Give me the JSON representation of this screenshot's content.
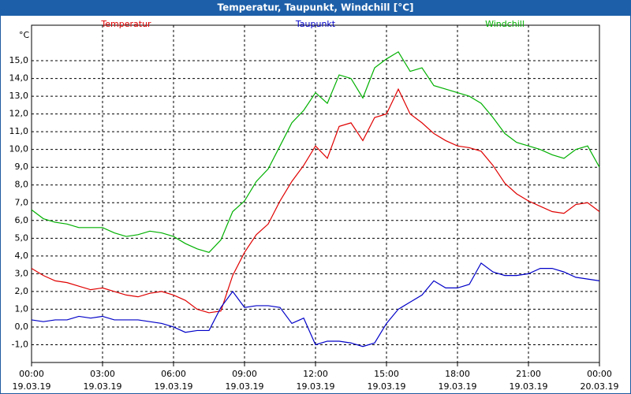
{
  "chart_data": {
    "type": "line",
    "title": "Temperatur, Taupunkt, Windchill [°C]",
    "y_label": "°C",
    "x": [
      0,
      0.5,
      1,
      1.5,
      2,
      2.5,
      3,
      3.5,
      4,
      4.5,
      5,
      5.5,
      6,
      6.5,
      7,
      7.5,
      8,
      8.5,
      9,
      9.5,
      10,
      10.5,
      11,
      11.5,
      12,
      12.5,
      13,
      13.5,
      14,
      14.5,
      15,
      15.5,
      16,
      16.5,
      17,
      17.5,
      18,
      18.5,
      19,
      19.5,
      20,
      20.5,
      21,
      21.5,
      22,
      22.5,
      23,
      23.5,
      24
    ],
    "xlim": [
      0,
      24
    ],
    "xticks": [
      {
        "value": 0,
        "label": "00:00\n19.03.19"
      },
      {
        "value": 3,
        "label": "03:00\n19.03.19"
      },
      {
        "value": 6,
        "label": "06:00\n19.03.19"
      },
      {
        "value": 9,
        "label": "09:00\n19.03.19"
      },
      {
        "value": 12,
        "label": "12:00\n19.03.19"
      },
      {
        "value": 15,
        "label": "15:00\n19.03.19"
      },
      {
        "value": 18,
        "label": "18:00\n19.03.19"
      },
      {
        "value": 21,
        "label": "21:00\n19.03.19"
      },
      {
        "value": 24,
        "label": "00:00\n20.03.19"
      }
    ],
    "ylim": [
      -2,
      17
    ],
    "yticks": [
      {
        "value": -1,
        "label": "-1,0"
      },
      {
        "value": 0,
        "label": "0,0"
      },
      {
        "value": 1,
        "label": "1,0"
      },
      {
        "value": 2,
        "label": "2,0"
      },
      {
        "value": 3,
        "label": "3,0"
      },
      {
        "value": 4,
        "label": "4,0"
      },
      {
        "value": 5,
        "label": "5,0"
      },
      {
        "value": 6,
        "label": "6,0"
      },
      {
        "value": 7,
        "label": "7,0"
      },
      {
        "value": 8,
        "label": "8,0"
      },
      {
        "value": 9,
        "label": "9,0"
      },
      {
        "value": 10,
        "label": "10,0"
      },
      {
        "value": 11,
        "label": "11,0"
      },
      {
        "value": 12,
        "label": "12,0"
      },
      {
        "value": 13,
        "label": "13,0"
      },
      {
        "value": 14,
        "label": "14,0"
      },
      {
        "value": 15,
        "label": "15,0"
      }
    ],
    "grid": true,
    "series": [
      {
        "name": "Temperatur",
        "color": "#e00000",
        "values": [
          3.3,
          2.9,
          2.6,
          2.5,
          2.3,
          2.1,
          2.2,
          2.0,
          1.8,
          1.7,
          1.9,
          2.0,
          1.8,
          1.5,
          1.0,
          0.8,
          0.9,
          2.9,
          4.2,
          5.2,
          5.8,
          7.1,
          8.2,
          9.1,
          10.2,
          9.5,
          11.3,
          11.5,
          10.5,
          11.8,
          12.0,
          13.4,
          12.0,
          11.5,
          10.9,
          10.5,
          10.2,
          10.1,
          9.9,
          9.1,
          8.1,
          7.5,
          7.1,
          6.8,
          6.5,
          6.4,
          6.9,
          7.0,
          6.5
        ]
      },
      {
        "name": "Taupunkt",
        "color": "#0000c8",
        "values": [
          0.4,
          0.3,
          0.4,
          0.4,
          0.6,
          0.5,
          0.6,
          0.4,
          0.4,
          0.4,
          0.3,
          0.2,
          0.0,
          -0.3,
          -0.2,
          -0.2,
          1.1,
          2.0,
          1.1,
          1.2,
          1.2,
          1.1,
          0.2,
          0.5,
          -1.0,
          -0.8,
          -0.8,
          -0.9,
          -1.1,
          -0.9,
          0.2,
          1.0,
          1.4,
          1.8,
          2.6,
          2.2,
          2.2,
          2.4,
          3.6,
          3.1,
          2.9,
          2.9,
          3.0,
          3.3,
          3.3,
          3.1,
          2.8,
          2.7,
          2.6
        ]
      },
      {
        "name": "Windchill",
        "color": "#00b000",
        "values": [
          6.6,
          6.1,
          5.9,
          5.8,
          5.6,
          5.6,
          5.6,
          5.3,
          5.1,
          5.2,
          5.4,
          5.3,
          5.1,
          4.7,
          4.4,
          4.2,
          4.9,
          6.5,
          7.1,
          8.2,
          8.9,
          10.2,
          11.5,
          12.2,
          13.2,
          12.6,
          14.2,
          14.0,
          12.9,
          14.6,
          15.1,
          15.5,
          14.4,
          14.6,
          13.6,
          13.4,
          13.2,
          13.0,
          12.6,
          11.8,
          10.9,
          10.4,
          10.2,
          10.0,
          9.7,
          9.5,
          10.0,
          10.2,
          9.0
        ]
      }
    ]
  }
}
